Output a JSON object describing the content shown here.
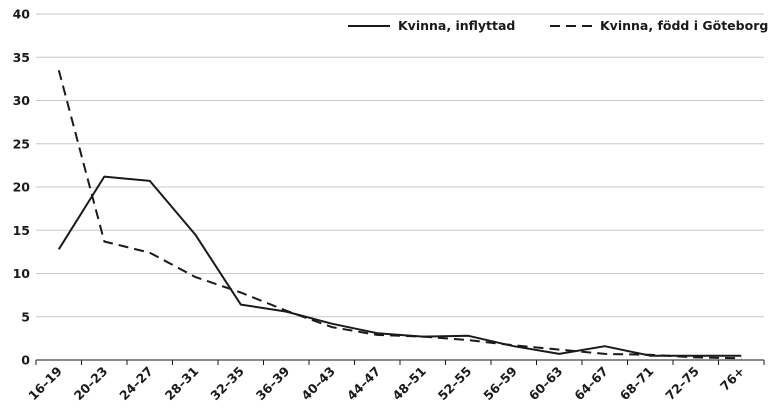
{
  "chart_data": {
    "type": "line",
    "title": "",
    "xlabel": "",
    "ylabel": "",
    "categories": [
      "16–19",
      "20–23",
      "24–27",
      "28–31",
      "32–35",
      "36–39",
      "40–43",
      "44–47",
      "48–51",
      "52–55",
      "56–59",
      "60–63",
      "64–67",
      "68–71",
      "72–75",
      "76+"
    ],
    "ylim": [
      0,
      40
    ],
    "yticks": [
      "0",
      "5",
      "10",
      "15",
      "20",
      "25",
      "30",
      "35",
      "40"
    ],
    "grid": "horizontal",
    "legend_position": "top-right",
    "series": [
      {
        "name": "Kvinna, inflyttad",
        "style": "solid",
        "color": "#1a1a1a",
        "values": [
          12.8,
          21.2,
          20.7,
          14.5,
          6.4,
          5.6,
          4.2,
          3.1,
          2.7,
          2.8,
          1.6,
          0.7,
          1.6,
          0.5,
          0.5,
          0.5
        ]
      },
      {
        "name": "Kvinna, född i Göteborg",
        "style": "dashed",
        "color": "#1a1a1a",
        "values": [
          33.5,
          13.7,
          12.4,
          9.6,
          7.8,
          5.7,
          3.8,
          2.9,
          2.7,
          2.3,
          1.7,
          1.2,
          0.7,
          0.6,
          0.3,
          0.2
        ]
      }
    ]
  }
}
